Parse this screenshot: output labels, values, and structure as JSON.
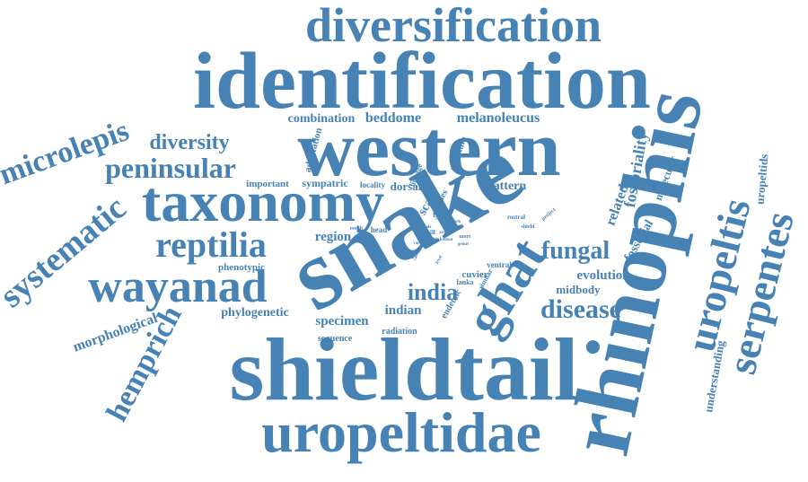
{
  "color": "#4682b4",
  "background": "#ffffff",
  "words": [
    "diversification",
    "identification",
    "western",
    "snake",
    "shieldtail",
    "rhinophis",
    "uropeltidae",
    "taxonomy",
    "wayanad",
    "reptilia",
    "peninsular",
    "diversity",
    "microlepis",
    "systematic",
    "uropeltis",
    "serpentes",
    "ghat",
    "hemprich",
    "india",
    "disease",
    "fungal",
    "morphological",
    "combination",
    "beddome",
    "melanoleucus",
    "fossoriality",
    "uropeltids",
    "molecular",
    "adaptation",
    "lineage",
    "structure",
    "important",
    "sympatric",
    "locality",
    "dorsal",
    "pattern",
    "scale",
    "series",
    "related",
    "type",
    "region",
    "result",
    "head",
    "phenotypic",
    "study",
    "fossorial",
    "evolution",
    "midbody",
    "rostral",
    "shield",
    "phylogenetic",
    "specimen",
    "indian",
    "sequence",
    "radiation",
    "cuvier",
    "lanka",
    "ventral",
    "endemic",
    "similar",
    "understanding",
    "project",
    "dark",
    "tail",
    "hill",
    "row",
    "pale",
    "more",
    "genus",
    "sister",
    "known",
    "level",
    "variation"
  ]
}
